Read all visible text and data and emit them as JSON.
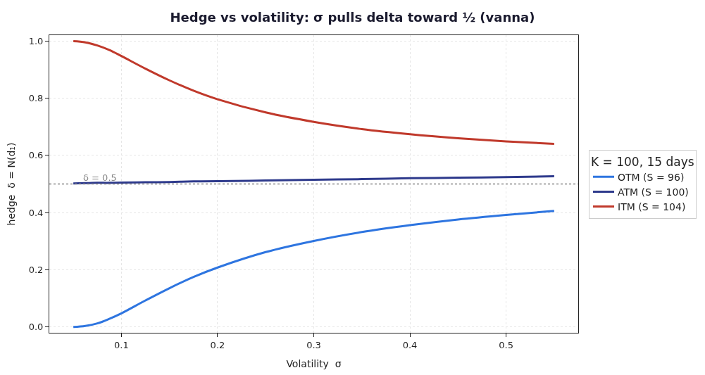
{
  "chart_data": {
    "type": "line",
    "title": "Hedge vs volatility: σ pulls delta toward ½ (vanna)",
    "xlabel": "Volatility  σ",
    "ylabel": "hedge  δ = N(d₁)",
    "legend_title": "K = 100, 15 days",
    "x": [
      0.05,
      0.0625,
      0.075,
      0.0875,
      0.1,
      0.125,
      0.15,
      0.175,
      0.2,
      0.25,
      0.3,
      0.35,
      0.4,
      0.45,
      0.5,
      0.55
    ],
    "series": [
      {
        "name": "OTM (S = 96)",
        "color": "#2e75e0",
        "values": [
          0.0,
          0.004,
          0.013,
          0.029,
          0.048,
          0.093,
          0.136,
          0.175,
          0.208,
          0.262,
          0.301,
          0.332,
          0.356,
          0.376,
          0.392,
          0.406
        ]
      },
      {
        "name": "ATM (S = 100)",
        "color": "#2e3a8c",
        "values": [
          0.502,
          0.503,
          0.504,
          0.504,
          0.505,
          0.506,
          0.507,
          0.509,
          0.51,
          0.512,
          0.515,
          0.517,
          0.52,
          0.522,
          0.524,
          0.527
        ]
      },
      {
        "name": "ITM (S = 104)",
        "color": "#c0392b",
        "values": [
          0.999,
          0.995,
          0.984,
          0.968,
          0.947,
          0.903,
          0.862,
          0.826,
          0.796,
          0.75,
          0.717,
          0.692,
          0.674,
          0.66,
          0.649,
          0.64
        ]
      }
    ],
    "xlim": [
      0.025,
      0.575
    ],
    "xticks": [
      0.1,
      0.2,
      0.3,
      0.4,
      0.5
    ],
    "ylim": [
      -0.02,
      1.02
    ],
    "yticks": [
      {
        "value": 0,
        "label": "0.0"
      },
      0.2,
      0.4,
      0.6,
      0.8,
      {
        "value": 1,
        "label": "1.0"
      }
    ],
    "ref_lines": [
      {
        "axis": "y",
        "value": 0.5,
        "label": "δ = 0.5",
        "color": "#888888",
        "line_style": "dotted"
      }
    ],
    "grid": true,
    "legend": "right",
    "line_style": "solid",
    "marker": "none"
  }
}
